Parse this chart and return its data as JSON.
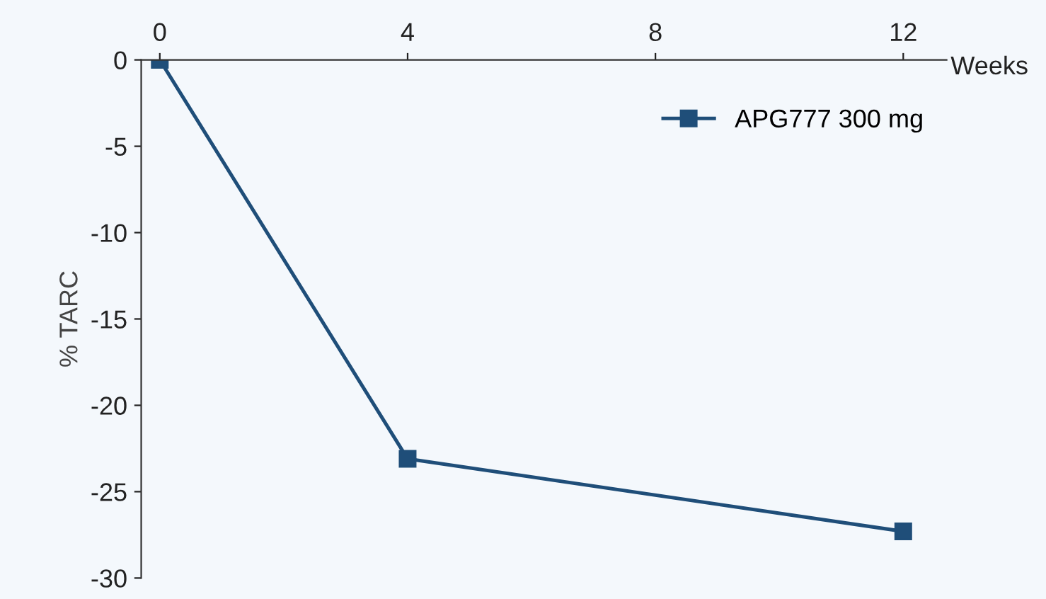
{
  "chart_data": {
    "type": "line",
    "xlabel": "Weeks",
    "ylabel": "% TARC",
    "x": [
      0,
      4,
      12
    ],
    "series": [
      {
        "name": "APG777 300 mg",
        "color": "#1f4e79",
        "values": [
          0,
          -23.1,
          -27.3
        ]
      }
    ],
    "xlim": [
      -0.3,
      12.7
    ],
    "xticks": [
      0,
      4,
      8,
      12
    ],
    "ylim": [
      -30,
      0
    ],
    "yticks": [
      0,
      -5,
      -10,
      -15,
      -20,
      -25,
      -30
    ],
    "marker": "square",
    "line_style": "solid",
    "legend": "top right",
    "grid": false
  }
}
